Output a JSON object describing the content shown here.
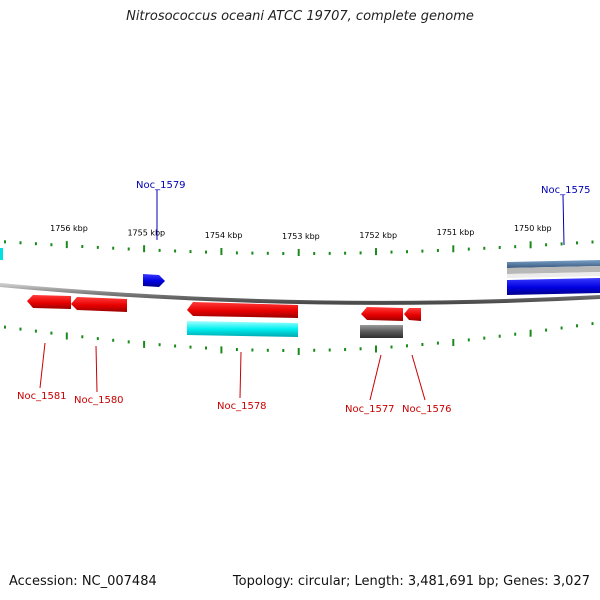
{
  "title": "Nitrosococcus oceani ATCC 19707, complete genome",
  "footer": {
    "accession": "Accession: NC_007484",
    "summary": "Topology: circular; Length: 3,481,691 bp; Genes: 3,027"
  },
  "colors": {
    "forward_label": "#0000b4",
    "reverse_label": "#c80000",
    "tick": "#1a8a1a",
    "backbone": "#8a8a8a"
  },
  "scale": {
    "kbp_labels": [
      {
        "kbp": 1756,
        "label": "1756 kbp"
      },
      {
        "kbp": 1755,
        "label": "1755 kbp"
      },
      {
        "kbp": 1754,
        "label": "1754 kbp"
      },
      {
        "kbp": 1753,
        "label": "1753 kbp"
      },
      {
        "kbp": 1752,
        "label": "1752 kbp"
      },
      {
        "kbp": 1751,
        "label": "1751 kbp"
      },
      {
        "kbp": 1750,
        "label": "1750 kbp"
      }
    ]
  },
  "genes": {
    "forward": [
      {
        "id": "Noc_1579",
        "label": "Noc_1579"
      },
      {
        "id": "Noc_1575",
        "label": "Noc_1575"
      }
    ],
    "reverse": [
      {
        "id": "Noc_1581",
        "label": "Noc_1581"
      },
      {
        "id": "Noc_1580",
        "label": "Noc_1580"
      },
      {
        "id": "Noc_1578",
        "label": "Noc_1578"
      },
      {
        "id": "Noc_1577",
        "label": "Noc_1577"
      },
      {
        "id": "Noc_1576",
        "label": "Noc_1576"
      }
    ]
  }
}
